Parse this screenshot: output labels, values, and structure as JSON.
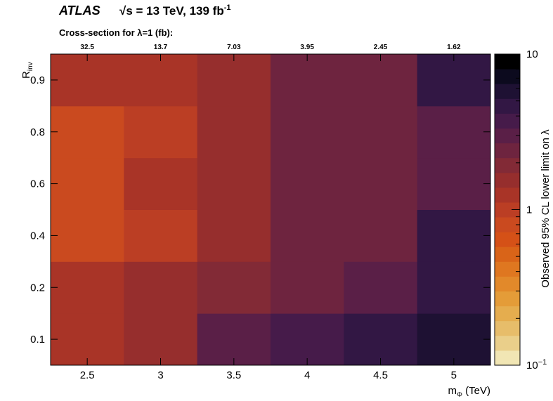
{
  "header": {
    "experiment": "ATLAS",
    "energy": "√s = 13 TeV, 139 fb",
    "lumi_exp": "-1",
    "xsec_label": "Cross-section for  λ=1 (fb):"
  },
  "chart_data": {
    "type": "heatmap",
    "xlabel": "m",
    "xlabel_sub": "Φ",
    "xlabel_unit": " (TeV)",
    "ylabel": "R",
    "ylabel_sub": "inv",
    "zlabel": "Observed 95% CL lower limit on  λ",
    "z_scale": "log",
    "zlim": [
      0.1,
      10
    ],
    "x_bins": [
      2.5,
      3,
      3.5,
      4,
      4.5,
      5
    ],
    "y_bins": [
      0.1,
      0.2,
      0.4,
      0.6,
      0.8,
      0.9
    ],
    "x_tick_labels": [
      "2.5",
      "3",
      "3.5",
      "4",
      "4.5",
      "5"
    ],
    "y_tick_labels": [
      "0.1",
      "0.2",
      "0.4",
      "0.6",
      "0.8",
      "0.9"
    ],
    "z_tick_labels": [
      {
        "value": 10,
        "base": "10",
        "exp": ""
      },
      {
        "value": 1,
        "base": "1",
        "exp": ""
      },
      {
        "value": 0.1,
        "base": "10",
        "exp": "−1"
      }
    ],
    "cross_sections": [
      "32.5",
      "13.7",
      "7.03",
      "3.95",
      "2.45",
      "1.62"
    ],
    "values": [
      [
        1.2,
        1.45,
        2.7,
        3.5,
        4.3,
        5.8
      ],
      [
        1.2,
        1.45,
        1.8,
        2.4,
        3.0,
        4.6
      ],
      [
        0.85,
        1.1,
        1.6,
        2.2,
        2.6,
        4.6
      ],
      [
        0.85,
        1.3,
        1.6,
        2.2,
        2.6,
        3.2
      ],
      [
        0.85,
        0.95,
        1.6,
        2.2,
        2.6,
        3.2
      ],
      [
        1.2,
        1.3,
        1.6,
        2.2,
        2.6,
        4.6
      ]
    ]
  },
  "palette": [
    "#f1e6b4",
    "#eacf8a",
    "#e7bd6a",
    "#e5ad4e",
    "#e49c38",
    "#e2892a",
    "#df7720",
    "#d96418",
    "#d55117",
    "#ca4a1f",
    "#bb3e24",
    "#a93427",
    "#962e2d",
    "#822a36",
    "#6e243f",
    "#5a1f47",
    "#461b4a",
    "#321744",
    "#1e1133",
    "#0c0a1e",
    "#000000"
  ]
}
